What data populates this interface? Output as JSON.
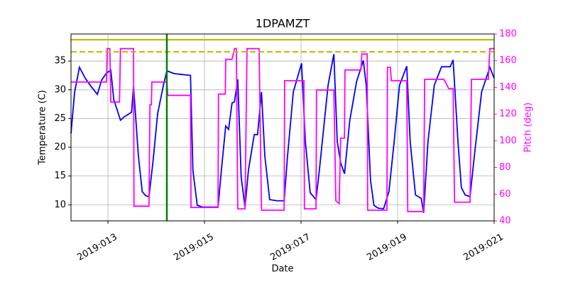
{
  "chart_data": {
    "type": "line",
    "title": "1DPAMZT",
    "xlabel": "Date",
    "ylabel": "Temperature (C)",
    "y2label": "Pitch (deg)",
    "xlim": [
      12.235,
      21
    ],
    "xticks": [
      {
        "value": 13,
        "label": "2019:013"
      },
      {
        "value": 15,
        "label": "2019:015"
      },
      {
        "value": 17,
        "label": "2019:017"
      },
      {
        "value": 19,
        "label": "2019:019"
      },
      {
        "value": 21,
        "label": "2019:021"
      }
    ],
    "ylim": [
      7.2,
      39.7
    ],
    "yticks": [
      10,
      15,
      20,
      25,
      30,
      35
    ],
    "y2lim": [
      40,
      180
    ],
    "y2ticks": [
      40,
      60,
      80,
      100,
      120,
      140,
      160,
      180
    ],
    "y2color": "#ff00ff",
    "grid": true,
    "hlines": [
      {
        "value": 38.7,
        "color": "#bfbf00",
        "dash": false
      },
      {
        "value": 36.6,
        "color": "#bfbf00",
        "dash": true
      }
    ],
    "vlines": [
      {
        "value": 14.22,
        "color": "#008000"
      }
    ],
    "series": [
      {
        "color": "#0000ff",
        "x": [
          12.235,
          12.31,
          12.41,
          12.53,
          12.65,
          12.78,
          12.87,
          12.97,
          13.06,
          13.12,
          13.26,
          13.34,
          13.49,
          13.53,
          13.63,
          13.71,
          13.78,
          13.85,
          13.93,
          14.03,
          14.15,
          14.22,
          14.37,
          14.71,
          14.76,
          14.85,
          14.96,
          15.28,
          15.35,
          15.44,
          15.5,
          15.57,
          15.62,
          15.69,
          15.76,
          15.84,
          15.91,
          16.03,
          16.1,
          16.18,
          16.25,
          16.35,
          16.5,
          16.65,
          16.72,
          16.84,
          17.01,
          17.09,
          17.19,
          17.31,
          17.38,
          17.56,
          17.68,
          17.75,
          17.82,
          17.9,
          18.01,
          18.15,
          18.29,
          18.35,
          18.44,
          18.51,
          18.6,
          18.71,
          18.82,
          18.93,
          19.04,
          19.19,
          19.26,
          19.37,
          19.49,
          19.54,
          19.63,
          19.76,
          19.91,
          20.09,
          20.15,
          20.25,
          20.32,
          20.4,
          20.5,
          20.59,
          20.74,
          20.91,
          21
        ],
        "values": [
          22.4,
          29.6,
          33.9,
          32,
          30.6,
          29.2,
          31.7,
          32.9,
          33.4,
          28.3,
          24.7,
          25.3,
          26.1,
          30.6,
          18.5,
          12.3,
          11.6,
          11.4,
          17.3,
          25.9,
          30.8,
          33.3,
          32.8,
          32.5,
          16,
          9.9,
          9.6,
          9.6,
          16,
          23.7,
          23.1,
          27.7,
          27.9,
          31.8,
          14.8,
          9.6,
          16,
          22.2,
          22.2,
          29.6,
          18.5,
          10.9,
          10.7,
          10.7,
          18.5,
          29.6,
          34.6,
          21,
          12.1,
          10.9,
          16,
          30.8,
          36.2,
          21,
          17.3,
          15.4,
          24.7,
          31.4,
          35.1,
          30.8,
          14.2,
          9.9,
          9.4,
          9.3,
          12.3,
          21,
          30.8,
          34.1,
          21,
          11.7,
          11.1,
          8.6,
          21,
          30.8,
          34,
          34,
          35.2,
          21,
          13,
          11.7,
          11.4,
          18.5,
          29.6,
          33.9,
          32
        ]
      },
      {
        "color": "#ff00ff",
        "axis": "y2",
        "x": [
          12.235,
          12.97,
          12.985,
          13.04,
          13.06,
          13.24,
          13.26,
          13.53,
          13.54,
          13.85,
          13.87,
          13.9,
          13.91,
          14.22,
          14.24,
          14.71,
          14.72,
          15.28,
          15.29,
          15.43,
          15.44,
          15.57,
          15.62,
          15.66,
          15.69,
          15.84,
          15.88,
          16.13,
          16.18,
          16.65,
          16.66,
          17.06,
          17.07,
          17.31,
          17.32,
          17.68,
          17.72,
          17.79,
          17.82,
          17.9,
          17.91,
          18.24,
          18.26,
          18.37,
          18.38,
          18.78,
          18.79,
          18.85,
          18.87,
          19.19,
          19.21,
          19.54,
          19.56,
          19.96,
          20.06,
          20.15,
          20.18,
          20.5,
          20.53,
          20.88,
          20.91,
          21
        ],
        "values": [
          144,
          144,
          169,
          169,
          129,
          129,
          169,
          169,
          51,
          51,
          127,
          127,
          144,
          144,
          134,
          134,
          50,
          50,
          135,
          135,
          161,
          161,
          169,
          169,
          49,
          49,
          169,
          169,
          48,
          48,
          145,
          145,
          49,
          49,
          138,
          138,
          55,
          53,
          102,
          102,
          153,
          153,
          165,
          165,
          48,
          48,
          155,
          155,
          145,
          145,
          47,
          47,
          146,
          146,
          139,
          139,
          54,
          54,
          146,
          146,
          169,
          169
        ]
      }
    ]
  }
}
